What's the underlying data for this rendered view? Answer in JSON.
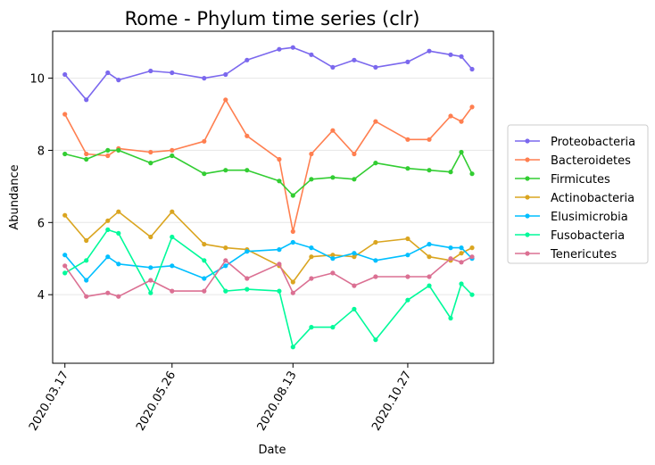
{
  "chart_data": {
    "type": "line",
    "title": "Rome - Phylum time series (clr)",
    "xlabel": "Date",
    "ylabel": "Abundance",
    "x": [
      "2020.03.17",
      "2020.03.31",
      "2020.04.14",
      "2020.04.21",
      "2020.05.12",
      "2020.05.26",
      "2020.06.16",
      "2020.06.30",
      "2020.07.14",
      "2020.08.04",
      "2020.08.13",
      "2020.08.25",
      "2020.09.08",
      "2020.09.22",
      "2020.10.06",
      "2020.10.27",
      "2020.11.10",
      "2020.11.24",
      "2020.12.01",
      "2020.12.08"
    ],
    "x_numeric_days": [
      0,
      14,
      28,
      35,
      56,
      70,
      91,
      105,
      119,
      140,
      149,
      161,
      175,
      189,
      203,
      224,
      238,
      252,
      259,
      266
    ],
    "xticks": [
      {
        "label": "2020.03.17",
        "day": 0
      },
      {
        "label": "2020.05.26",
        "day": 70
      },
      {
        "label": "2020.08.13",
        "day": 149
      },
      {
        "label": "2020.10.27",
        "day": 224
      }
    ],
    "xlim_days": [
      -8,
      280
    ],
    "ylim": [
      2.1,
      11.3
    ],
    "yticks": [
      4,
      6,
      8,
      10
    ],
    "grid": "y",
    "legend_position": "outside-right",
    "series": [
      {
        "name": "Proteobacteria",
        "color": "#7b68ee",
        "values": [
          10.1,
          9.4,
          10.15,
          9.95,
          10.2,
          10.15,
          10.0,
          10.1,
          10.5,
          10.8,
          10.85,
          10.65,
          10.3,
          10.5,
          10.3,
          10.45,
          10.75,
          10.65,
          10.6,
          10.25
        ]
      },
      {
        "name": "Bacteroidetes",
        "color": "#ff7f50",
        "values": [
          9.0,
          7.9,
          7.85,
          8.05,
          7.95,
          8.0,
          8.25,
          9.4,
          8.4,
          7.75,
          5.75,
          7.9,
          8.55,
          7.9,
          8.8,
          8.3,
          8.3,
          8.95,
          8.8,
          9.2
        ]
      },
      {
        "name": "Firmicutes",
        "color": "#32cd32",
        "values": [
          7.9,
          7.75,
          8.0,
          8.0,
          7.65,
          7.85,
          7.35,
          7.45,
          7.45,
          7.15,
          6.75,
          7.2,
          7.25,
          7.2,
          7.65,
          7.5,
          7.45,
          7.4,
          7.95,
          7.35
        ]
      },
      {
        "name": "Actinobacteria",
        "color": "#daa520",
        "values": [
          6.2,
          5.5,
          6.05,
          6.3,
          5.6,
          6.3,
          5.4,
          5.3,
          5.25,
          4.8,
          4.35,
          5.05,
          5.1,
          5.05,
          5.45,
          5.55,
          5.05,
          4.95,
          5.15,
          5.3
        ]
      },
      {
        "name": "Elusimicrobia",
        "color": "#00bfff",
        "values": [
          5.1,
          4.4,
          5.05,
          4.85,
          4.75,
          4.8,
          4.45,
          4.8,
          5.2,
          5.25,
          5.45,
          5.3,
          5.0,
          5.15,
          4.95,
          5.1,
          5.4,
          5.3,
          5.3,
          5.0
        ]
      },
      {
        "name": "Fusobacteria",
        "color": "#00fa9a",
        "values": [
          4.6,
          4.95,
          5.8,
          5.7,
          4.05,
          5.6,
          4.95,
          4.1,
          4.15,
          4.1,
          2.55,
          3.1,
          3.1,
          3.6,
          2.75,
          3.85,
          4.25,
          3.35,
          4.3,
          4.0
        ]
      },
      {
        "name": "Tenericutes",
        "color": "#db7093",
        "values": [
          4.8,
          3.95,
          4.05,
          3.95,
          4.4,
          4.1,
          4.1,
          4.95,
          4.45,
          4.85,
          4.05,
          4.45,
          4.6,
          4.25,
          4.5,
          4.5,
          4.5,
          5.0,
          4.9,
          5.05
        ]
      }
    ]
  }
}
